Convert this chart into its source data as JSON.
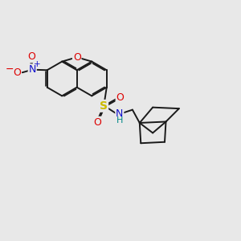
{
  "bg": "#e8e8e8",
  "bond_color": "#1a1a1a",
  "bond_lw": 1.4,
  "dbo": 0.05,
  "atom_colors": {
    "O": "#dd0000",
    "N": "#1111cc",
    "S": "#ccbb00",
    "H": "#008888"
  },
  "figsize": [
    3.0,
    3.0
  ],
  "dpi": 100,
  "xlim": [
    0,
    10
  ],
  "ylim": [
    0,
    10
  ]
}
